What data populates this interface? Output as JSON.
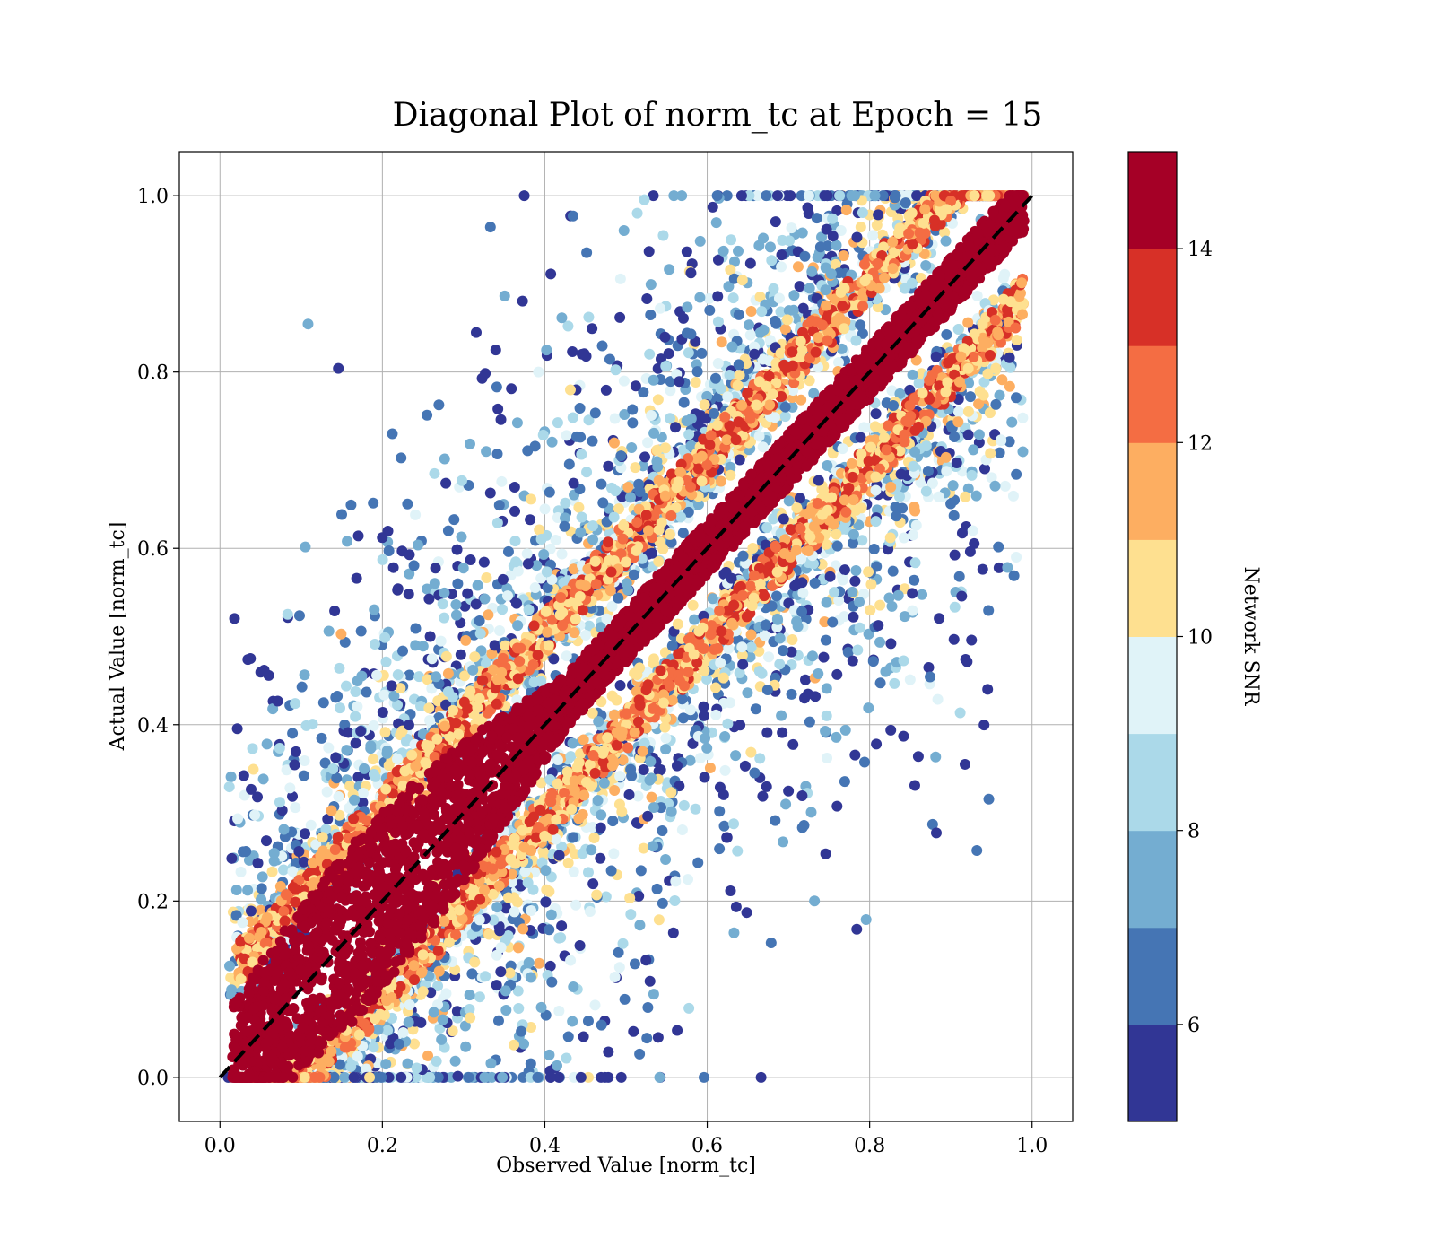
{
  "chart_data": {
    "type": "scatter",
    "title": "Diagonal Plot of norm_tc at Epoch = 15",
    "xlabel": "Observed Value [norm_tc]",
    "ylabel": "Actual Value [norm_tc]",
    "xlim": [
      -0.05,
      1.05
    ],
    "ylim": [
      -0.05,
      1.05
    ],
    "xticks": [
      "0.0",
      "0.2",
      "0.4",
      "0.6",
      "0.8",
      "1.0"
    ],
    "yticks": [
      "0.0",
      "0.2",
      "0.4",
      "0.6",
      "0.8",
      "1.0"
    ],
    "grid": true,
    "reference_line": {
      "style": "dashed",
      "color": "#000000",
      "from": [
        0.0,
        0.0
      ],
      "to": [
        1.0,
        1.0
      ]
    },
    "colorbar": {
      "label": "Network SNR",
      "range": [
        5,
        15
      ],
      "ticks": [
        "6",
        "8",
        "10",
        "12",
        "14"
      ],
      "tick_values": [
        6,
        8,
        10,
        12,
        14
      ],
      "colors": [
        "#313695",
        "#4575b4",
        "#74add1",
        "#abd9e9",
        "#e0f3f8",
        "#fee090",
        "#fdae61",
        "#f46d43",
        "#d73027",
        "#a50026"
      ]
    },
    "distribution": {
      "high_snr_band_halfwidth": [
        0.02,
        0.11
      ],
      "low_snr_scatter_halfwidth": 0.45,
      "note_colors_high_snr": "#a50026"
    }
  }
}
